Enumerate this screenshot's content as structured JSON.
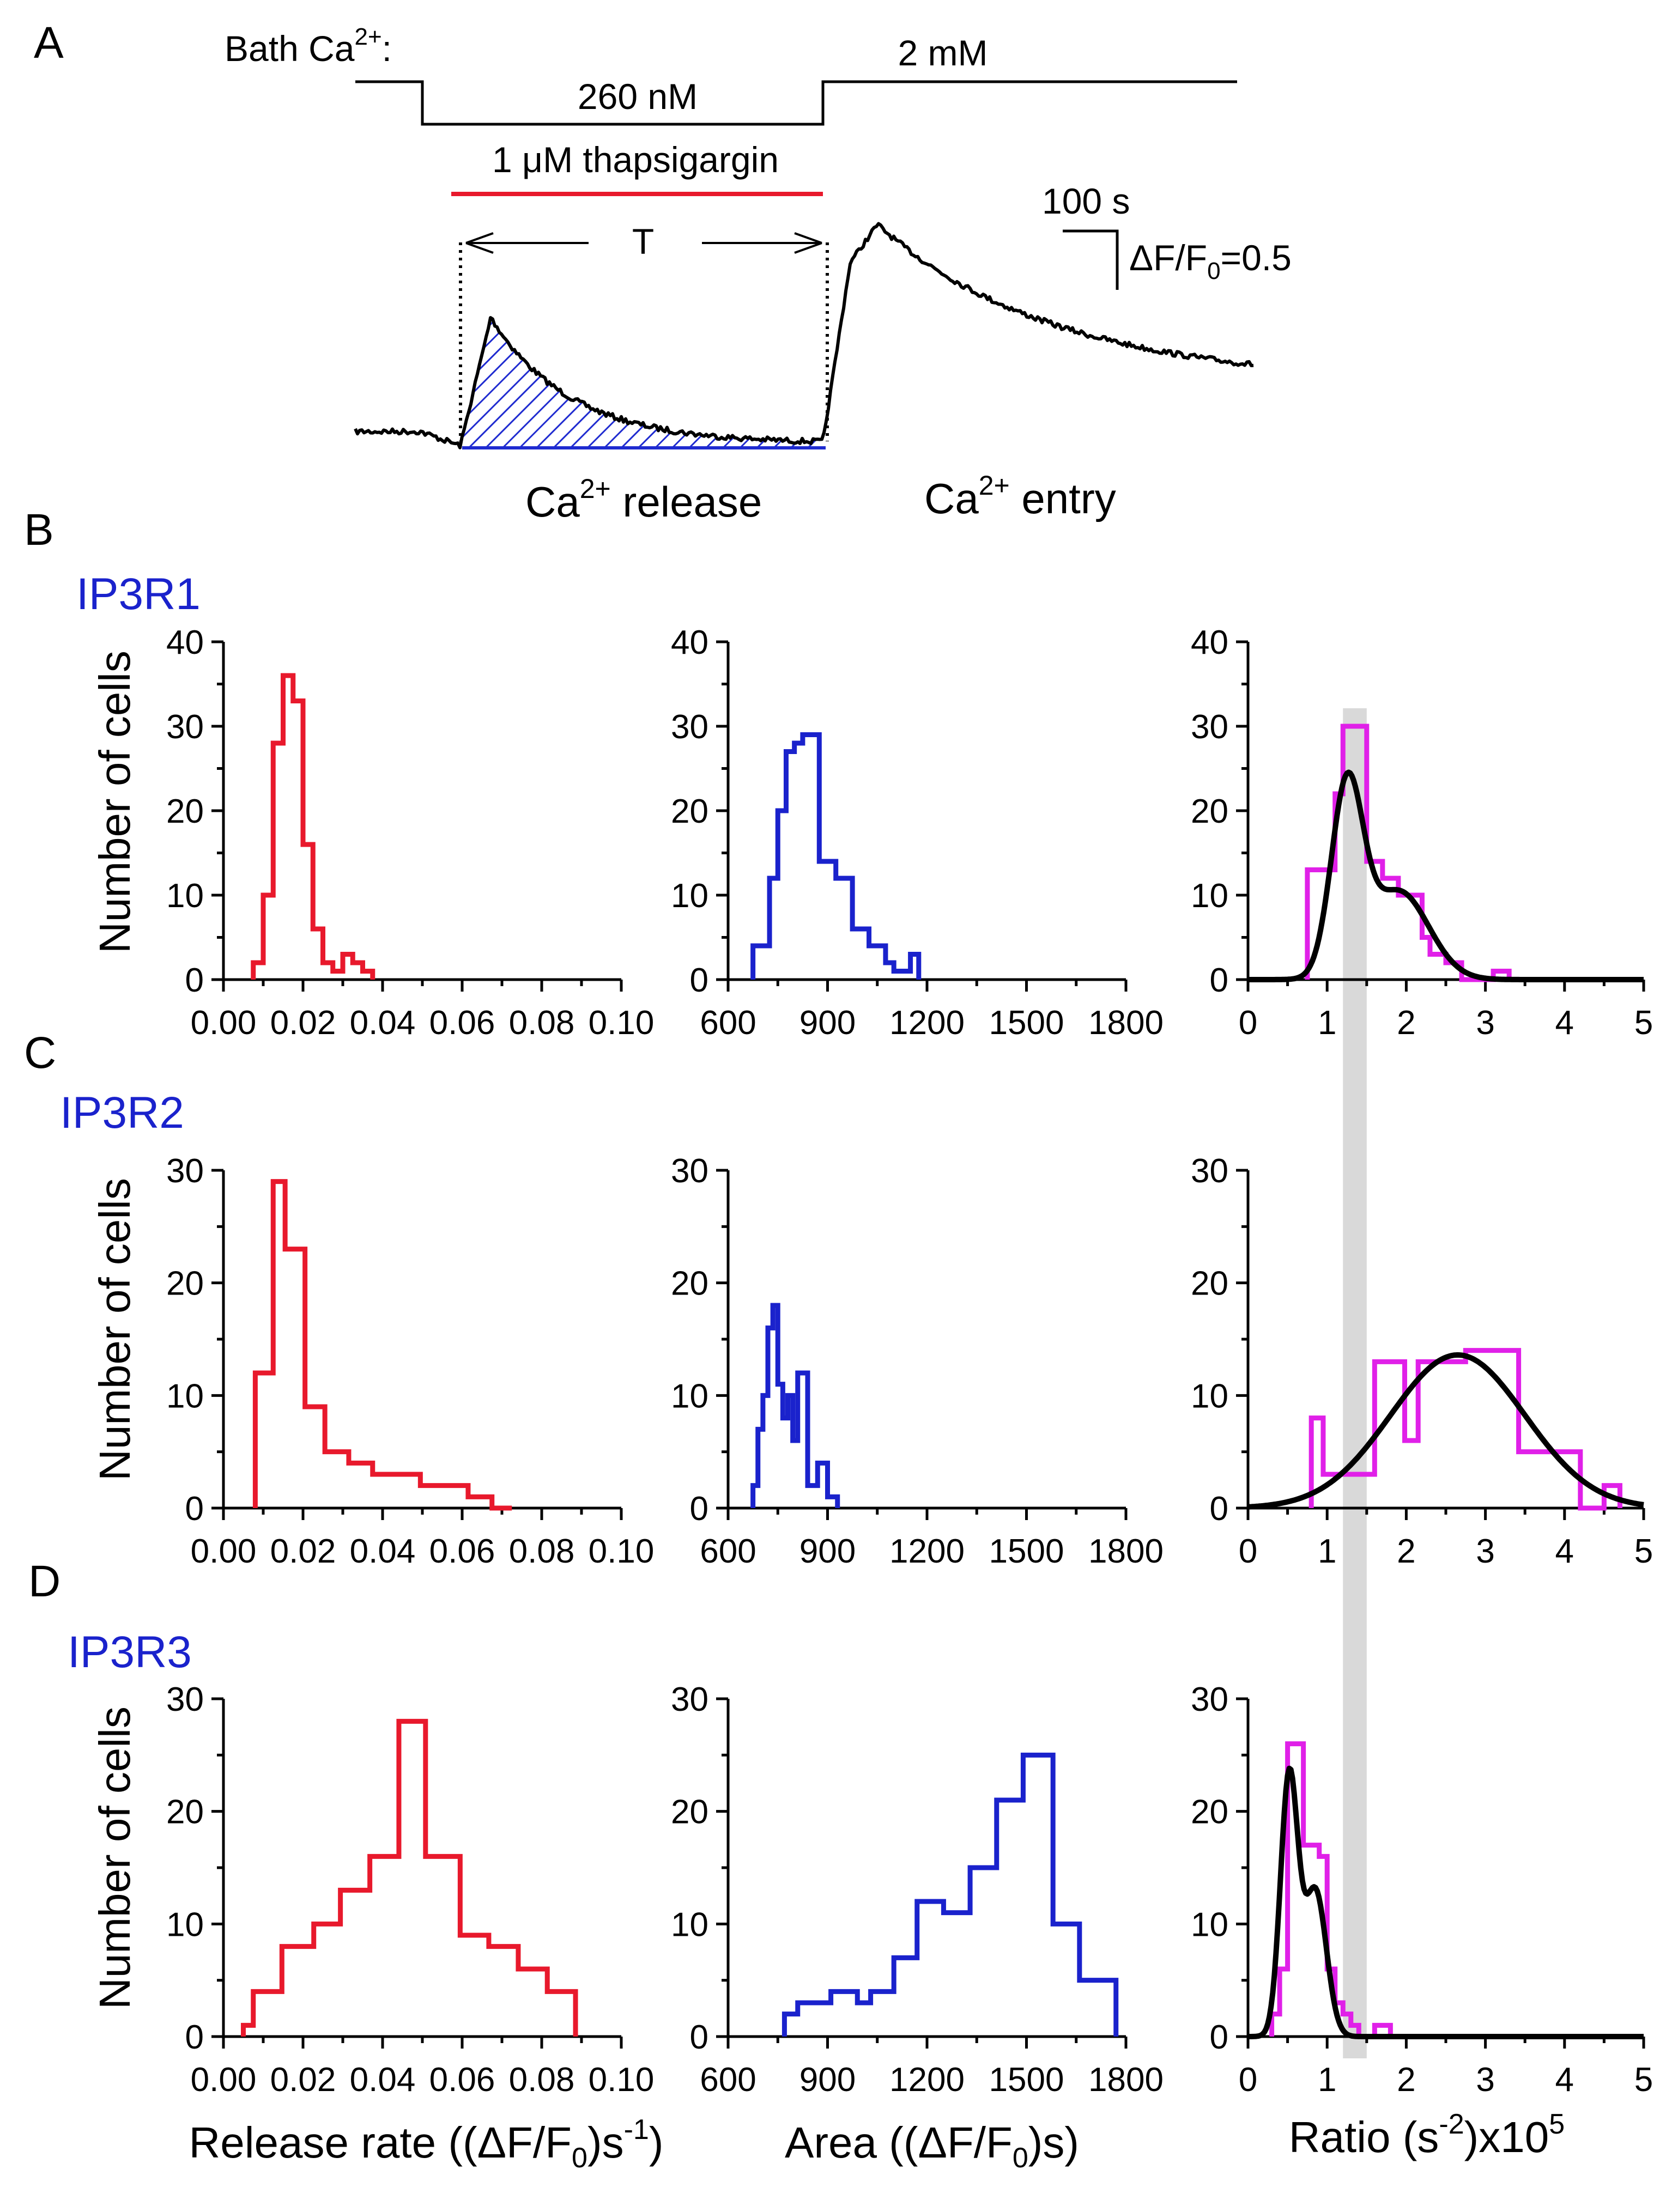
{
  "panels": {
    "A": "A",
    "B": "B",
    "C": "C",
    "D": "D"
  },
  "panel_a": {
    "bath_label": "Bath Ca",
    "bath_sup": "2+",
    "bath_colon": ":",
    "low_ca": "260 nM",
    "high_ca": "2 mM",
    "drug": "1 μM thapsigargin",
    "t_label": "T",
    "scale_time": "100 s",
    "scale_df_pre": "ΔF/F",
    "scale_df_sub": "0",
    "scale_df_post": "=0.5",
    "release_pre": "Ca",
    "release_sup": "2+",
    "release_post": " release",
    "entry_pre": "Ca",
    "entry_sup": "2+",
    "entry_post": " entry",
    "colors": {
      "drug_bar": "#e8192c",
      "hatch": "#1f2bd0",
      "trace": "#000000"
    }
  },
  "axis_titles": {
    "y": "Number of cells",
    "x_rate_pre": "Release rate ((ΔF/F",
    "x_rate_sub": "0",
    "x_rate_mid": ")s",
    "x_rate_sup": "-1",
    "x_rate_post": ")",
    "x_area_pre": "Area ((ΔF/F",
    "x_area_sub": "0",
    "x_area_post": ")s)",
    "x_ratio_pre": "Ratio (s",
    "x_ratio_sup": "-2",
    "x_ratio_mid": ")x10",
    "x_ratio_sup2": "5"
  },
  "colors": {
    "rate": "#e8192c",
    "area": "#1a22cc",
    "ratio": "#e020e8",
    "fit": "#000000",
    "band": "#d9d9d9"
  },
  "shared_band": [
    1.2,
    1.5
  ],
  "chart_data": [
    {
      "id": "B-rate",
      "row": "IP3R1",
      "type": "histogram",
      "xlim": [
        0,
        0.1
      ],
      "ylim": [
        0,
        40
      ],
      "xticks": [
        "0.00",
        "0.02",
        "0.04",
        "0.06",
        "0.08",
        "0.10"
      ],
      "yticks": [
        "0",
        "10",
        "20",
        "30",
        "40"
      ],
      "bins": [
        0.0075,
        0.01,
        0.0125,
        0.015,
        0.0175,
        0.02,
        0.0225,
        0.025,
        0.0275,
        0.03,
        0.0325,
        0.035,
        0.0375
      ],
      "counts": [
        2,
        10,
        28,
        36,
        33,
        16,
        6,
        2,
        1,
        3,
        2,
        1
      ]
    },
    {
      "id": "B-area",
      "row": "IP3R1",
      "type": "histogram",
      "xlim": [
        600,
        1800
      ],
      "ylim": [
        0,
        40
      ],
      "xticks": [
        "600",
        "900",
        "1200",
        "1500",
        "1800"
      ],
      "yticks": [
        "0",
        "10",
        "20",
        "30",
        "40"
      ],
      "bins": [
        675,
        700,
        725,
        750,
        775,
        800,
        825,
        850,
        875,
        900,
        925,
        950,
        975,
        1000,
        1025,
        1050,
        1075,
        1100,
        1125,
        1150,
        1175
      ],
      "counts": [
        4,
        4,
        12,
        20,
        27,
        28,
        29,
        29,
        14,
        14,
        12,
        12,
        6,
        6,
        4,
        4,
        2,
        1,
        1,
        3
      ]
    },
    {
      "id": "B-ratio",
      "row": "IP3R1",
      "type": "histogram",
      "xlim": [
        0,
        5
      ],
      "ylim": [
        0,
        40
      ],
      "xticks": [
        "0",
        "1",
        "2",
        "3",
        "4",
        "5"
      ],
      "yticks": [
        "0",
        "10",
        "20",
        "30",
        "40"
      ],
      "bins": [
        0.75,
        1.0,
        1.1,
        1.2,
        1.5,
        1.7,
        1.9,
        2.2,
        2.3,
        2.5,
        2.7,
        3.1,
        3.3
      ],
      "counts": [
        13,
        13,
        22,
        30,
        14,
        12,
        10,
        5,
        3,
        2,
        0,
        1
      ],
      "fit": {
        "components": [
          {
            "amp": 22,
            "mu": 1.25,
            "sigma": 0.2
          },
          {
            "amp": 10.5,
            "mu": 1.9,
            "sigma": 0.38
          }
        ]
      }
    },
    {
      "id": "C-rate",
      "row": "IP3R2",
      "type": "histogram",
      "xlim": [
        0,
        0.1
      ],
      "ylim": [
        0,
        30
      ],
      "xticks": [
        "0.00",
        "0.02",
        "0.04",
        "0.06",
        "0.08",
        "0.10"
      ],
      "yticks": [
        "0",
        "10",
        "20",
        "30"
      ],
      "bins": [
        0.008,
        0.0125,
        0.0155,
        0.0205,
        0.0255,
        0.0315,
        0.0375,
        0.0495,
        0.0615,
        0.0675,
        0.0725
      ],
      "counts": [
        12,
        29,
        23,
        9,
        5,
        4,
        3,
        2,
        1,
        0
      ]
    },
    {
      "id": "C-area",
      "row": "IP3R2",
      "type": "histogram",
      "xlim": [
        600,
        1800
      ],
      "ylim": [
        0,
        30
      ],
      "xticks": [
        "600",
        "900",
        "1200",
        "1500",
        "1800"
      ],
      "yticks": [
        "0",
        "10",
        "20",
        "30"
      ],
      "bins": [
        675,
        690,
        705,
        720,
        735,
        750,
        765,
        780,
        795,
        810,
        825,
        840,
        855,
        870,
        885,
        900,
        915,
        930
      ],
      "counts": [
        2,
        7,
        10,
        16,
        18,
        11,
        8,
        10,
        6,
        12,
        12,
        2,
        2,
        4,
        4,
        1,
        1
      ]
    },
    {
      "id": "C-ratio",
      "row": "IP3R2",
      "type": "histogram",
      "xlim": [
        0,
        5
      ],
      "ylim": [
        0,
        30
      ],
      "xticks": [
        "0",
        "1",
        "2",
        "3",
        "4",
        "5"
      ],
      "yticks": [
        "0",
        "10",
        "20",
        "30"
      ],
      "bins": [
        0.8,
        0.95,
        1.0,
        1.6,
        1.98,
        2.15,
        2.75,
        3.42,
        4.2,
        4.5,
        4.7
      ],
      "counts": [
        8,
        3,
        3,
        13,
        6,
        13,
        14,
        5,
        0,
        2
      ],
      "fit": {
        "components": [
          {
            "amp": 13.6,
            "mu": 2.65,
            "sigma": 0.85
          }
        ]
      }
    },
    {
      "id": "D-rate",
      "row": "IP3R3",
      "type": "histogram",
      "xlim": [
        0,
        0.1
      ],
      "ylim": [
        0,
        30
      ],
      "xticks": [
        "0.00",
        "0.02",
        "0.04",
        "0.06",
        "0.08",
        "0.10"
      ],
      "yticks": [
        "0",
        "10",
        "20",
        "30"
      ],
      "bins": [
        0.005,
        0.0075,
        0.0147,
        0.0227,
        0.0294,
        0.0368,
        0.0441,
        0.0508,
        0.0595,
        0.0667,
        0.0741,
        0.0814,
        0.0885
      ],
      "counts": [
        1,
        4,
        8,
        10,
        13,
        16,
        28,
        16,
        9,
        8,
        6,
        4
      ]
    },
    {
      "id": "D-area",
      "row": "IP3R3",
      "type": "histogram",
      "xlim": [
        600,
        1800
      ],
      "ylim": [
        0,
        30
      ],
      "xticks": [
        "600",
        "900",
        "1200",
        "1500",
        "1800"
      ],
      "yticks": [
        "0",
        "10",
        "20",
        "30"
      ],
      "bins": [
        770,
        810,
        850,
        910,
        990,
        1030,
        1100,
        1170,
        1250,
        1330,
        1410,
        1490,
        1580,
        1660,
        1770
      ],
      "counts": [
        2,
        3,
        3,
        4,
        3,
        4,
        7,
        12,
        11,
        15,
        21,
        25,
        10,
        5
      ]
    },
    {
      "id": "D-ratio",
      "row": "IP3R3",
      "type": "histogram",
      "xlim": [
        0,
        5
      ],
      "ylim": [
        0,
        30
      ],
      "xticks": [
        "0",
        "1",
        "2",
        "3",
        "4",
        "5"
      ],
      "yticks": [
        "0",
        "10",
        "20",
        "30"
      ],
      "bins": [
        0.3,
        0.4,
        0.5,
        0.7,
        0.9,
        1.0,
        1.1,
        1.2,
        1.3,
        1.4,
        1.6,
        1.8
      ],
      "counts": [
        2,
        6,
        26,
        17,
        16,
        6,
        3,
        2,
        1,
        0,
        1
      ],
      "fit": {
        "components": [
          {
            "amp": 23,
            "mu": 0.52,
            "sigma": 0.11
          },
          {
            "amp": 13,
            "mu": 0.85,
            "sigma": 0.14
          }
        ]
      }
    }
  ]
}
